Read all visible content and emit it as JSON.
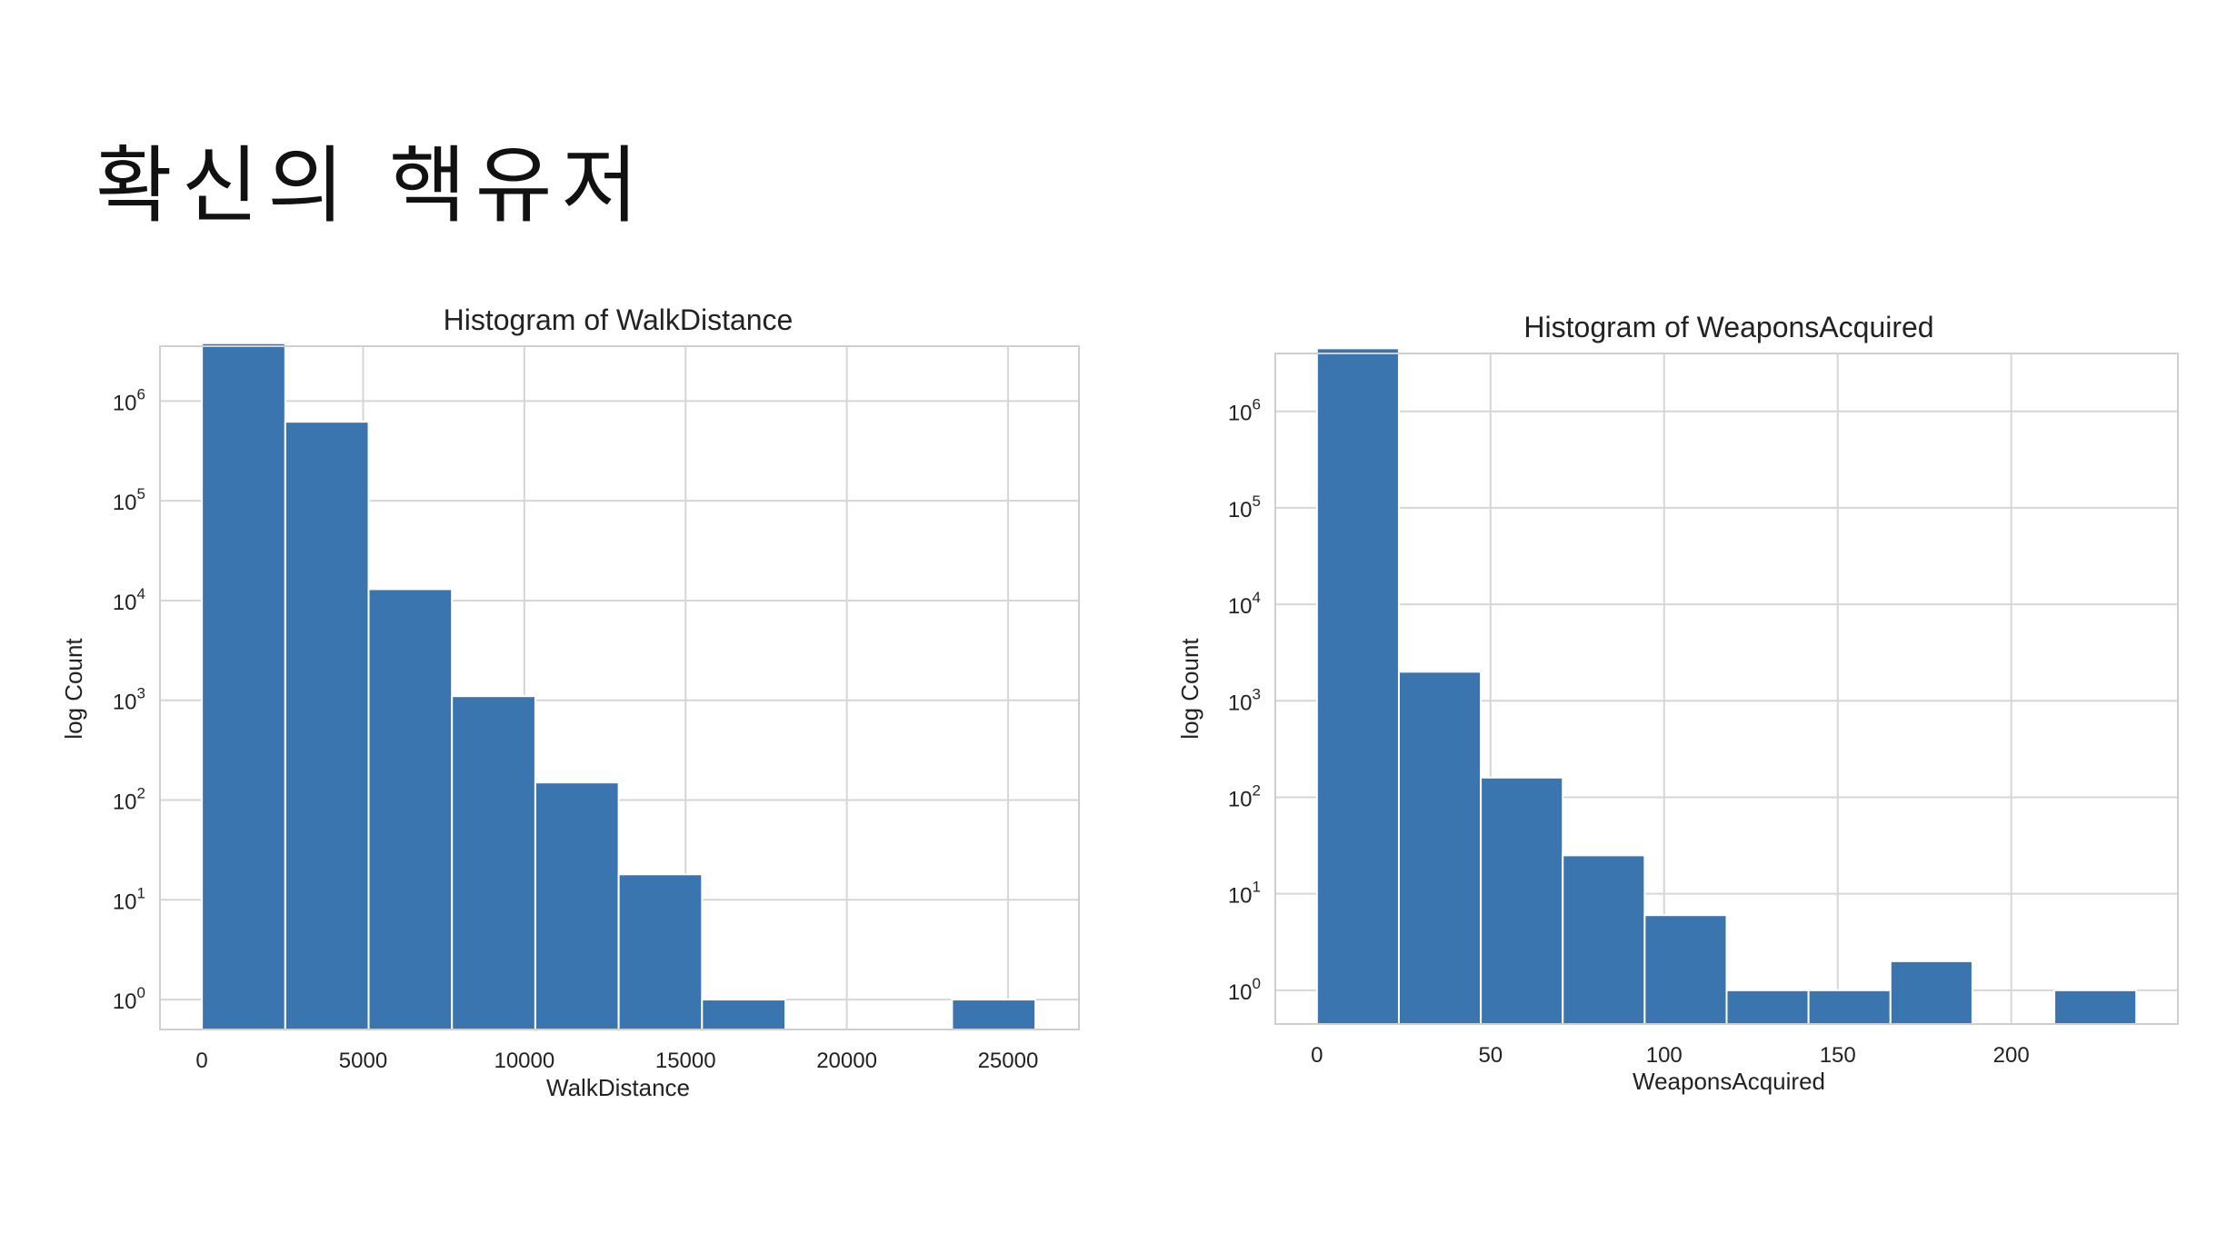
{
  "slide": {
    "title": "확신의 핵유저"
  },
  "colors": {
    "bar": "#3b75af",
    "grid": "#d6d6d6",
    "background": "#ffffff"
  },
  "chart_data": [
    {
      "type": "bar",
      "title": "Histogram of WalkDistance",
      "xlabel": "WalkDistance",
      "ylabel": "log Count",
      "yscale": "log",
      "grid": true,
      "xlim": [
        -1300,
        27200
      ],
      "ylim_exp": [
        -0.3,
        6.55
      ],
      "xticks": [
        0,
        5000,
        10000,
        15000,
        20000,
        25000
      ],
      "yticks_exp": [
        0,
        1,
        2,
        3,
        4,
        5,
        6
      ],
      "bins": [
        {
          "x0": 0,
          "x1": 2585,
          "count": 3800000
        },
        {
          "x0": 2585,
          "x1": 5170,
          "count": 620000
        },
        {
          "x0": 5170,
          "x1": 7755,
          "count": 13000
        },
        {
          "x0": 7755,
          "x1": 10340,
          "count": 1100
        },
        {
          "x0": 10340,
          "x1": 12925,
          "count": 150
        },
        {
          "x0": 12925,
          "x1": 15510,
          "count": 18
        },
        {
          "x0": 15510,
          "x1": 18095,
          "count": 1
        },
        {
          "x0": 18095,
          "x1": 20680,
          "count": 0
        },
        {
          "x0": 20680,
          "x1": 23265,
          "count": 0
        },
        {
          "x0": 23265,
          "x1": 25850,
          "count": 1
        }
      ]
    },
    {
      "type": "bar",
      "title": "Histogram of WeaponsAcquired",
      "xlabel": "WeaponsAcquired",
      "ylabel": "log Count",
      "yscale": "log",
      "grid": true,
      "xlim": [
        -12,
        248
      ],
      "ylim_exp": [
        -0.35,
        6.6
      ],
      "xticks": [
        0,
        50,
        100,
        150,
        200
      ],
      "yticks_exp": [
        0,
        1,
        2,
        3,
        4,
        5,
        6
      ],
      "bins": [
        {
          "x0": 0,
          "x1": 23.6,
          "count": 4500000
        },
        {
          "x0": 23.6,
          "x1": 47.2,
          "count": 2000
        },
        {
          "x0": 47.2,
          "x1": 70.8,
          "count": 160
        },
        {
          "x0": 70.8,
          "x1": 94.4,
          "count": 25
        },
        {
          "x0": 94.4,
          "x1": 118,
          "count": 6
        },
        {
          "x0": 118,
          "x1": 141.6,
          "count": 1
        },
        {
          "x0": 141.6,
          "x1": 165.2,
          "count": 1
        },
        {
          "x0": 165.2,
          "x1": 188.8,
          "count": 2
        },
        {
          "x0": 188.8,
          "x1": 212.4,
          "count": 0
        },
        {
          "x0": 212.4,
          "x1": 236,
          "count": 1
        }
      ]
    }
  ]
}
